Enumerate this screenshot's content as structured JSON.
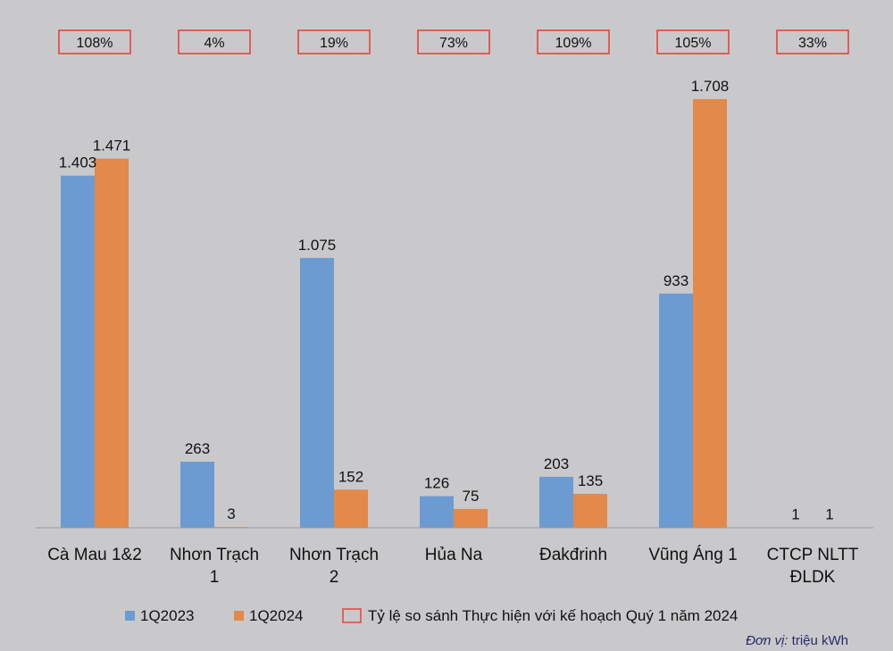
{
  "chart_data": {
    "type": "bar",
    "categories": [
      [
        "Cà Mau 1&2"
      ],
      [
        "Nhơn Trạch",
        "1"
      ],
      [
        "Nhơn Trạch",
        "2"
      ],
      [
        "Hủa Na"
      ],
      [
        "Đakđrinh"
      ],
      [
        "Vũng Áng 1"
      ],
      [
        "CTCP NLTT",
        "ĐLDK"
      ]
    ],
    "series": [
      {
        "name": "1Q2023",
        "color": "#6b9bd1",
        "values": [
          1403,
          263,
          1075,
          126,
          203,
          933,
          1
        ],
        "labels": [
          "1.403",
          "263",
          "1.075",
          "126",
          "203",
          "933",
          "1"
        ]
      },
      {
        "name": "1Q2024",
        "color": "#e38949",
        "values": [
          1471,
          3,
          152,
          75,
          135,
          1708,
          1
        ],
        "labels": [
          "1.471",
          "3",
          "152",
          "75",
          "135",
          "1.708",
          "1"
        ]
      }
    ],
    "ratio": {
      "name": "Tỷ lệ so sánh Thực hiện với kế hoạch Quý 1 năm 2024",
      "labels": [
        "108%",
        "4%",
        "19%",
        "73%",
        "109%",
        "105%",
        "33%"
      ],
      "color": "#e0463a"
    },
    "ylim": [
      0,
      1900
    ],
    "grid": false,
    "legend_position": "bottom"
  },
  "unit_label": "Đơn vị:",
  "unit_value": " triệu kWh"
}
